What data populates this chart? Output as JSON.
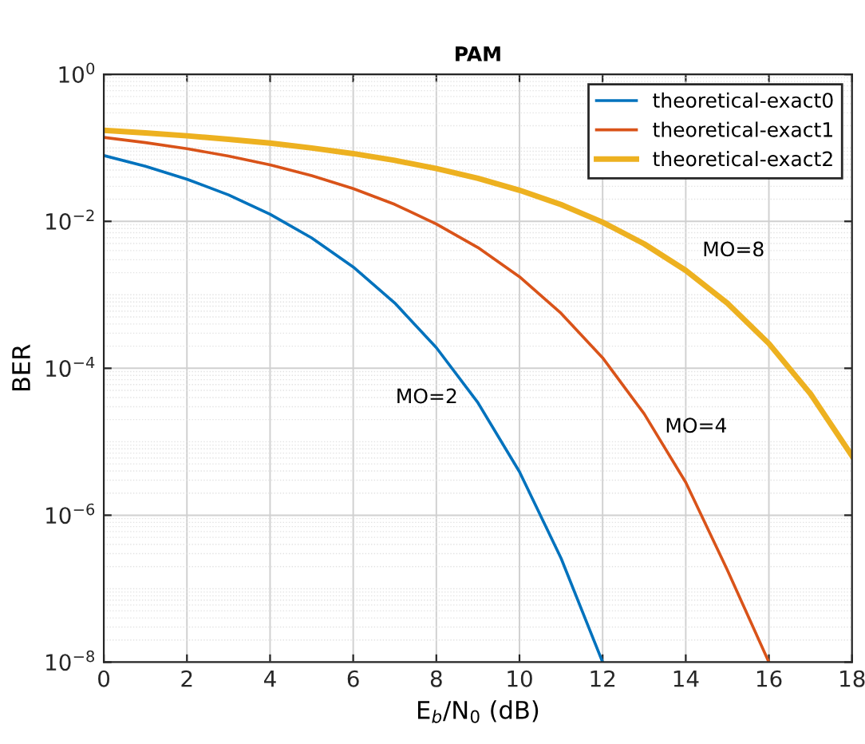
{
  "chart_data": {
    "type": "line",
    "title": "PAM",
    "xlabel": "E$_{b}$/N$_{0}$ (dB)",
    "ylabel": "BER",
    "x": [
      0,
      1,
      2,
      3,
      4,
      5,
      6,
      7,
      8,
      9,
      10,
      11,
      12,
      13,
      14,
      15,
      16,
      17,
      18
    ],
    "series": [
      {
        "name": "theoretical-exact0",
        "color": "#0072bd",
        "x": [
          0,
          1,
          2,
          3,
          4,
          5,
          6,
          7,
          8,
          9,
          10,
          11,
          12
        ],
        "values": [
          0.0786,
          0.0563,
          0.0375,
          0.0229,
          0.0125,
          0.00595,
          0.00239,
          0.000773,
          0.000191,
          3.4e-05,
          3.9e-06,
          2.6e-07,
          1e-08
        ]
      },
      {
        "name": "theoretical-exact1",
        "color": "#d95319",
        "x": [
          0,
          1,
          2,
          3,
          4,
          5,
          6,
          7,
          8,
          9,
          10,
          11,
          12,
          13,
          14,
          15,
          16
        ],
        "values": [
          0.139,
          0.118,
          0.0975,
          0.0775,
          0.0586,
          0.0419,
          0.0279,
          0.017,
          0.0092,
          0.0044,
          0.00176,
          0.00056,
          0.000139,
          2.4e-05,
          2.8e-06,
          1.8e-07,
          1e-08
        ]
      },
      {
        "name": "theoretical-exact2",
        "color": "#edb120",
        "values": [
          0.173,
          0.16,
          0.146,
          0.131,
          0.116,
          0.0997,
          0.0835,
          0.0675,
          0.0523,
          0.0385,
          0.0265,
          0.0169,
          0.00972,
          0.00494,
          0.00215,
          0.00077,
          0.000217,
          4.5e-05,
          6.4e-06
        ]
      }
    ],
    "log": "y",
    "xlim": [
      0,
      18
    ],
    "ylim": [
      1e-08,
      1
    ],
    "xticks": [
      0,
      2,
      4,
      6,
      8,
      10,
      12,
      14,
      16,
      18
    ],
    "yticks": [
      {
        "value": 1e-08,
        "label": "10$^{−8}$"
      },
      {
        "value": 1e-06,
        "label": "10$^{−6}$"
      },
      {
        "value": 0.0001,
        "label": "10$^{−4}$"
      },
      {
        "value": 0.01,
        "label": "10$^{−2}$"
      },
      {
        "value": 1,
        "label": "10$^{0}$"
      }
    ],
    "annotations": [
      "MO=2",
      "MO=4",
      "MO=8"
    ],
    "grid": true,
    "legend": "top right",
    "line_style": "solid",
    "marker": "none"
  }
}
